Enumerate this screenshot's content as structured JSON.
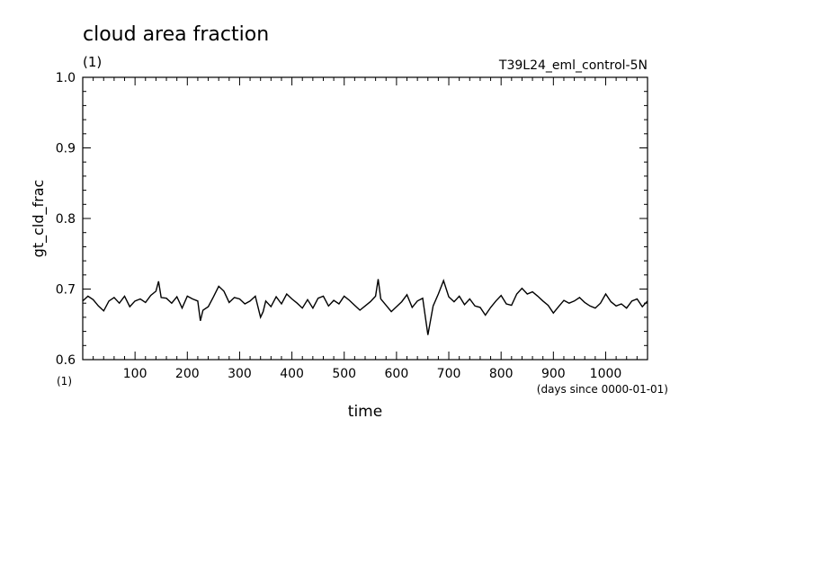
{
  "chart_data": {
    "type": "line",
    "title": "cloud area fraction",
    "units": "(1)",
    "experiment": "T39L24_eml_control-5N",
    "ylabel": "gt_cld_frac",
    "xlabel": "time",
    "x_units": "(days since 0000-01-01)",
    "x_units_left": "(1)",
    "xlim": [
      0,
      1080
    ],
    "ylim": [
      0.6,
      1.0
    ],
    "xticks": [
      100,
      200,
      300,
      400,
      500,
      600,
      700,
      800,
      900,
      1000
    ],
    "yticks": [
      0.6,
      0.7,
      0.8,
      0.9,
      1.0
    ],
    "ytick_labels": [
      "0.6",
      "0.7",
      "0.8",
      "0.9",
      "1.0"
    ],
    "grid": false,
    "line_color": "#000000",
    "series": [
      {
        "x": [
          0,
          10,
          20,
          30,
          40,
          50,
          60,
          70,
          80,
          90,
          100,
          110,
          120,
          130,
          140,
          145,
          150,
          160,
          170,
          180,
          190,
          200,
          210,
          220,
          225,
          230,
          240,
          250,
          260,
          270,
          280,
          290,
          300,
          310,
          320,
          330,
          340,
          345,
          350,
          360,
          370,
          380,
          390,
          400,
          410,
          420,
          430,
          440,
          450,
          460,
          470,
          480,
          490,
          500,
          510,
          520,
          530,
          540,
          550,
          560,
          565,
          570,
          580,
          590,
          600,
          610,
          620,
          630,
          640,
          650,
          660,
          670,
          680,
          690,
          700,
          710,
          720,
          730,
          740,
          750,
          760,
          770,
          780,
          790,
          800,
          810,
          820,
          830,
          840,
          850,
          860,
          870,
          880,
          890,
          900,
          910,
          920,
          930,
          940,
          950,
          960,
          970,
          980,
          990,
          1000,
          1010,
          1020,
          1030,
          1040,
          1050,
          1060,
          1070,
          1080
        ],
        "y": [
          0.683,
          0.69,
          0.685,
          0.676,
          0.669,
          0.683,
          0.688,
          0.68,
          0.69,
          0.675,
          0.683,
          0.686,
          0.681,
          0.691,
          0.697,
          0.711,
          0.688,
          0.687,
          0.68,
          0.689,
          0.673,
          0.69,
          0.686,
          0.683,
          0.655,
          0.67,
          0.675,
          0.689,
          0.704,
          0.697,
          0.681,
          0.688,
          0.686,
          0.679,
          0.683,
          0.69,
          0.66,
          0.668,
          0.683,
          0.675,
          0.689,
          0.679,
          0.693,
          0.686,
          0.68,
          0.673,
          0.685,
          0.673,
          0.687,
          0.69,
          0.676,
          0.684,
          0.679,
          0.69,
          0.684,
          0.677,
          0.67,
          0.676,
          0.682,
          0.69,
          0.714,
          0.686,
          0.677,
          0.668,
          0.675,
          0.682,
          0.692,
          0.674,
          0.683,
          0.687,
          0.635,
          0.676,
          0.693,
          0.712,
          0.689,
          0.682,
          0.69,
          0.678,
          0.686,
          0.676,
          0.674,
          0.663,
          0.674,
          0.683,
          0.691,
          0.679,
          0.677,
          0.693,
          0.701,
          0.693,
          0.696,
          0.69,
          0.683,
          0.677,
          0.666,
          0.675,
          0.684,
          0.68,
          0.683,
          0.688,
          0.681,
          0.676,
          0.673,
          0.68,
          0.693,
          0.682,
          0.676,
          0.679,
          0.673,
          0.683,
          0.686,
          0.675,
          0.683
        ]
      }
    ]
  }
}
